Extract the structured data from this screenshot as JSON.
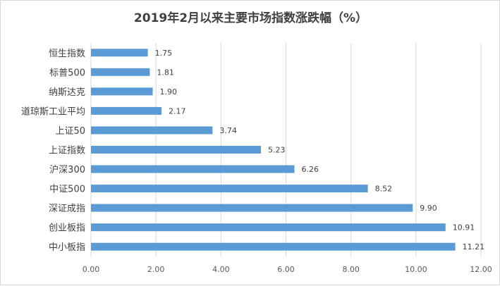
{
  "chart_data": {
    "type": "bar",
    "orientation": "horizontal",
    "title": "2019年2月以来主要市场指数涨跌幅（%）",
    "xlabel": "",
    "ylabel": "",
    "categories": [
      "恒生指数",
      "标普500",
      "纳斯达克",
      "道琼斯工业平均",
      "上证50",
      "上证指数",
      "沪深300",
      "中证500",
      "深证成指",
      "创业板指",
      "中小板指"
    ],
    "values": [
      1.75,
      1.81,
      1.9,
      2.17,
      3.74,
      5.23,
      6.26,
      8.52,
      9.9,
      10.91,
      11.21
    ],
    "value_labels": [
      "1.75",
      "1.81",
      "1.90",
      "2.17",
      "3.74",
      "5.23",
      "6.26",
      "8.52",
      "9.90",
      "10.91",
      "11.21"
    ],
    "xlim": [
      0,
      12
    ],
    "xticks": [
      "0.00",
      "2.00",
      "4.00",
      "6.00",
      "8.00",
      "10.00",
      "12.00"
    ],
    "bar_color": "#5b9bd5",
    "grid": true,
    "legend": "none"
  }
}
